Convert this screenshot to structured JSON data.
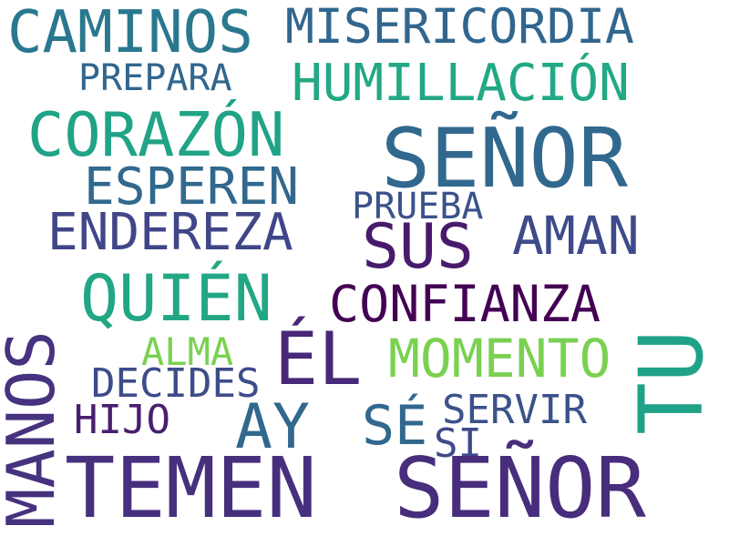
{
  "words": [
    {
      "text": "CAMINOS",
      "color": "#2a788e"
    },
    {
      "text": "MISERICORDIA",
      "color": "#31668e"
    },
    {
      "text": "PREPARA",
      "color": "#31668e"
    },
    {
      "text": "HUMILLACIÓN",
      "color": "#22a884"
    },
    {
      "text": "CORAZÓN",
      "color": "#20a386"
    },
    {
      "text": "SEÑOR",
      "color": "#31688e"
    },
    {
      "text": "ESPEREN",
      "color": "#31688e"
    },
    {
      "text": "PRUEBA",
      "color": "#3b528b"
    },
    {
      "text": "ENDEREZA",
      "color": "#404688"
    },
    {
      "text": "SUS",
      "color": "#481a6c"
    },
    {
      "text": "AMAN",
      "color": "#3e4a89"
    },
    {
      "text": "QUIÉN",
      "color": "#22a785"
    },
    {
      "text": "CONFIANZA",
      "color": "#440154"
    },
    {
      "text": "TU",
      "color": "#1fa287"
    },
    {
      "text": "ALMA",
      "color": "#7ad151"
    },
    {
      "text": "ÉL",
      "color": "#482878"
    },
    {
      "text": "MOMENTO",
      "color": "#7ad151"
    },
    {
      "text": "DECIDES",
      "color": "#3e4c8a"
    },
    {
      "text": "AY",
      "color": "#31688e"
    },
    {
      "text": "SÉ",
      "color": "#31688e"
    },
    {
      "text": "SERVIR",
      "color": "#3b528b"
    },
    {
      "text": "HIJO",
      "color": "#481f70"
    },
    {
      "text": "SI",
      "color": "#3e4a89"
    },
    {
      "text": "MANOS",
      "color": "#46327e"
    },
    {
      "text": "TEMEN",
      "color": "#46307e"
    },
    {
      "text": "SEÑOR",
      "color": "#472d7b"
    }
  ]
}
